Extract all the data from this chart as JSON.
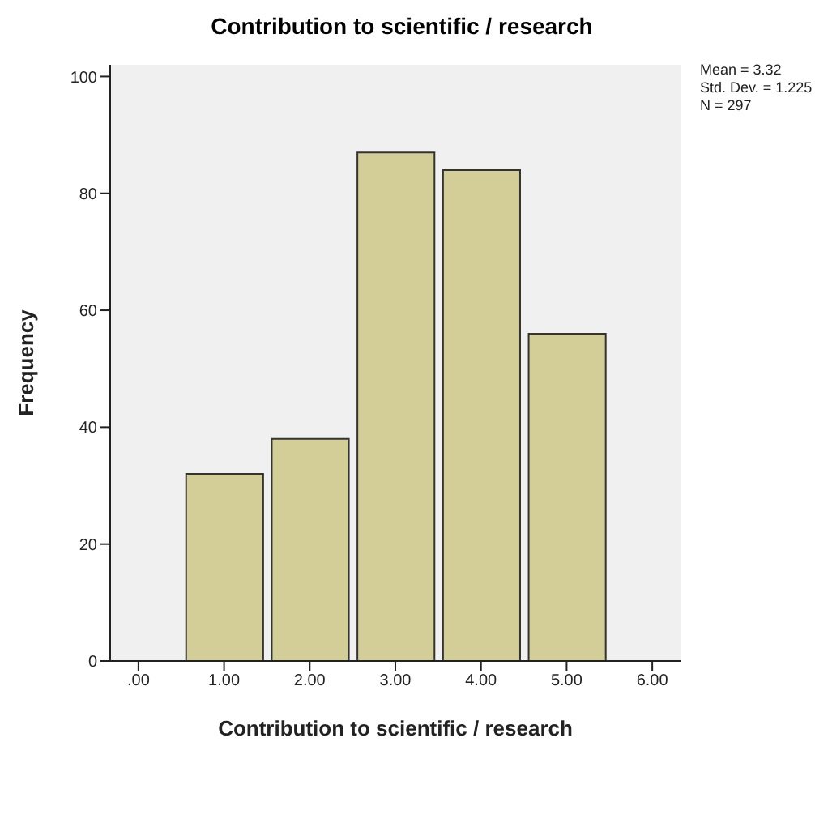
{
  "chart_data": {
    "type": "histogram",
    "title": "Contribution to scientific / research",
    "xlabel": "Contribution to scientific / research",
    "ylabel": "Frequency",
    "bins": [
      0.5,
      1.5,
      2.5,
      3.5,
      4.5,
      5.5
    ],
    "values": [
      32,
      38,
      87,
      84,
      56
    ],
    "color": "#d3ce97",
    "xlim": [
      -0.33,
      6.33
    ],
    "xticks": [
      {
        "value": 0,
        "label": ".00"
      },
      {
        "value": 1,
        "label": "1.00"
      },
      {
        "value": 2,
        "label": "2.00"
      },
      {
        "value": 3,
        "label": "3.00"
      },
      {
        "value": 4,
        "label": "4.00"
      },
      {
        "value": 5,
        "label": "5.00"
      },
      {
        "value": 6,
        "label": "6.00"
      }
    ],
    "ylim": [
      0,
      102
    ],
    "yticks": [
      0,
      20,
      40,
      60,
      80,
      100
    ],
    "grid": false,
    "annotations": [
      "Mean = 3.32",
      "Std. Dev. = 1.225",
      "N = 297"
    ]
  }
}
